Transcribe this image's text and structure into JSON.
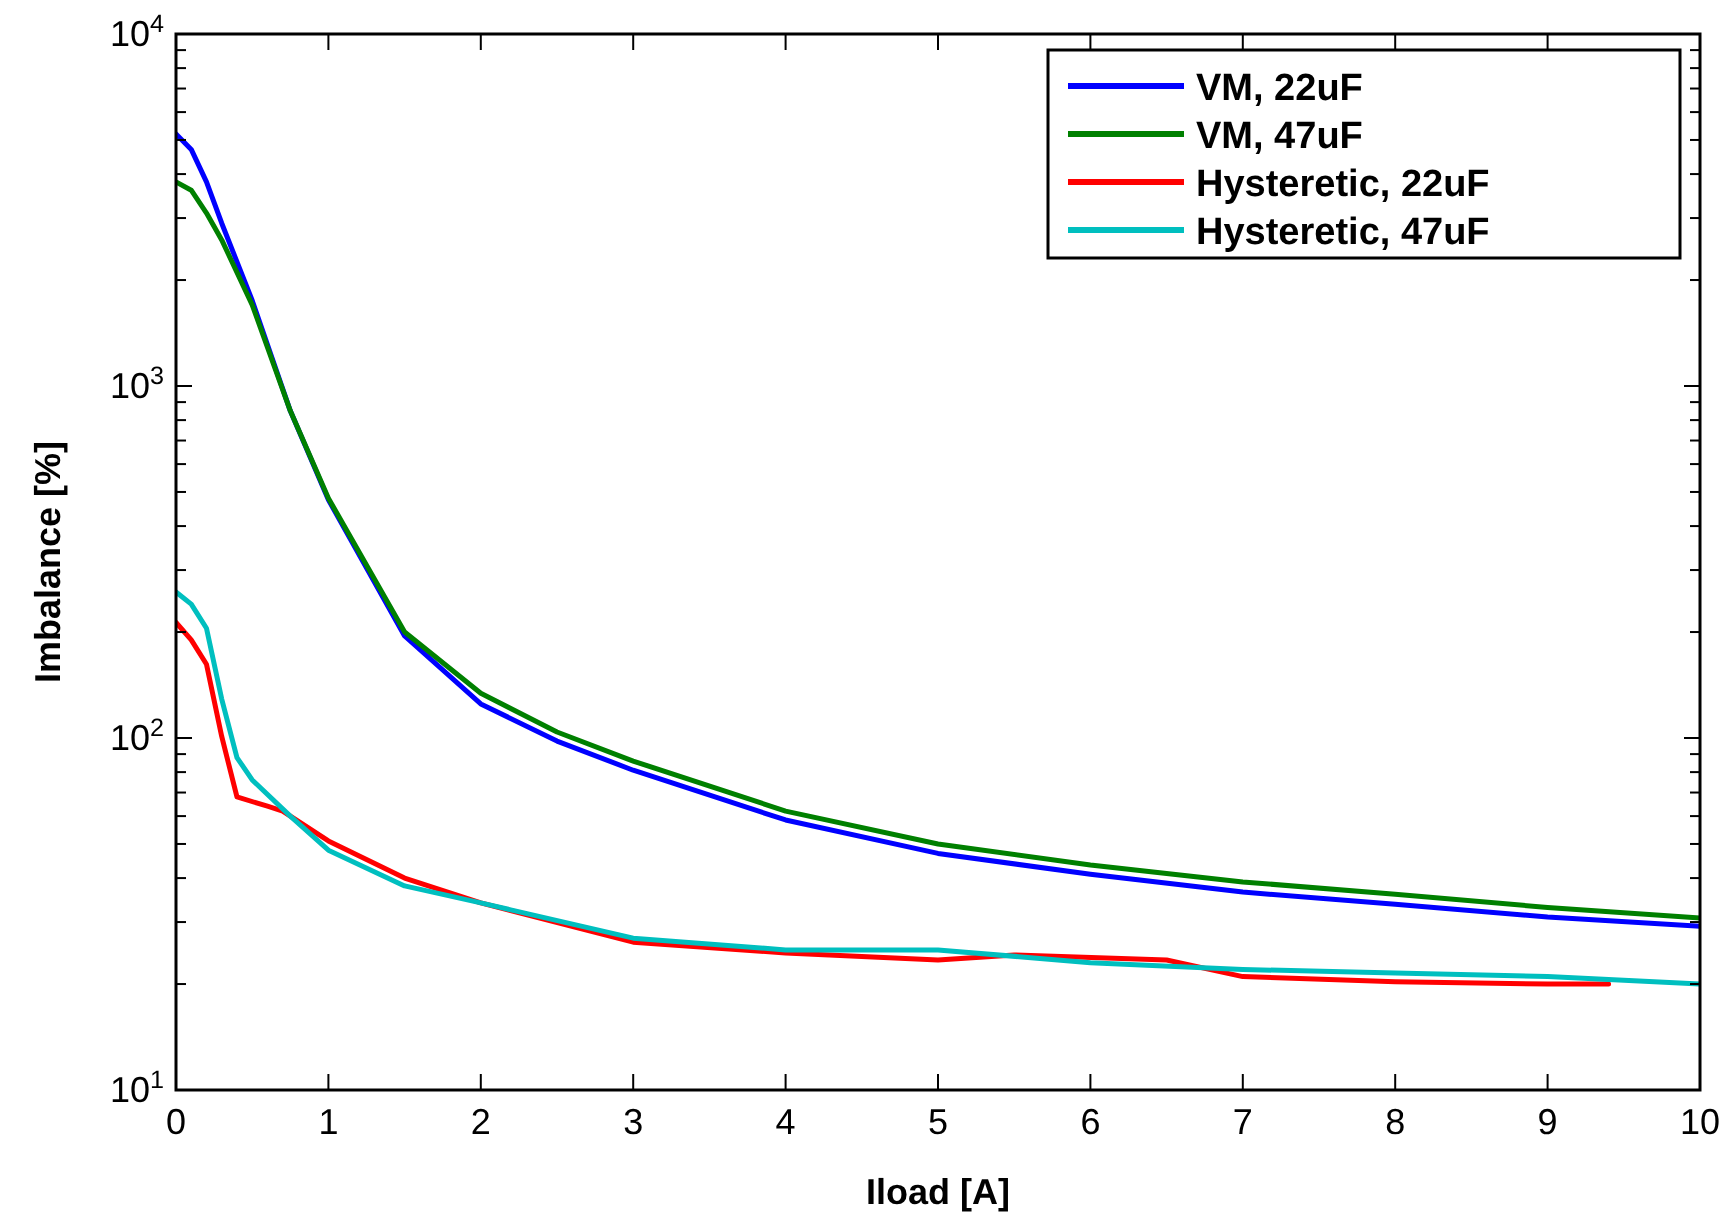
{
  "chart_data": {
    "type": "line",
    "xlabel": "Iload [A]",
    "ylabel": "Imbalance [%]",
    "log": "y",
    "grid": false,
    "legend": "top right",
    "line_style": "solid",
    "marker": "none",
    "xlim": [
      0,
      10
    ],
    "xticks": [
      0,
      1,
      2,
      3,
      4,
      5,
      6,
      7,
      8,
      9,
      10
    ],
    "ylim": [
      10,
      10000
    ],
    "yticks": [
      {
        "value": 10,
        "label": "10$^{1}$"
      },
      {
        "value": 20,
        "label": null
      },
      {
        "value": 30,
        "label": null
      },
      {
        "value": 40,
        "label": null
      },
      {
        "value": 50,
        "label": null
      },
      {
        "value": 60,
        "label": null
      },
      {
        "value": 70,
        "label": null
      },
      {
        "value": 80,
        "label": null
      },
      {
        "value": 90,
        "label": null
      },
      {
        "value": 100,
        "label": "10$^{2}$"
      },
      {
        "value": 200,
        "label": null
      },
      {
        "value": 300,
        "label": null
      },
      {
        "value": 400,
        "label": null
      },
      {
        "value": 500,
        "label": null
      },
      {
        "value": 600,
        "label": null
      },
      {
        "value": 700,
        "label": null
      },
      {
        "value": 800,
        "label": null
      },
      {
        "value": 900,
        "label": null
      },
      {
        "value": 1000,
        "label": "10$^{3}$"
      },
      {
        "value": 2000,
        "label": null
      },
      {
        "value": 3000,
        "label": null
      },
      {
        "value": 4000,
        "label": null
      },
      {
        "value": 5000,
        "label": null
      },
      {
        "value": 6000,
        "label": null
      },
      {
        "value": 7000,
        "label": null
      },
      {
        "value": 8000,
        "label": null
      },
      {
        "value": 9000,
        "label": null
      },
      {
        "value": 10000,
        "label": "10$^{4}$"
      }
    ],
    "series": [
      {
        "name": "VM, 22uF",
        "color": "#0000ff",
        "x": [
          0,
          0.1,
          0.2,
          0.3,
          0.5,
          0.75,
          1,
          1.5,
          2,
          2.5,
          3,
          4,
          5,
          6,
          7,
          8,
          9,
          10
        ],
        "values": [
          5200,
          4700,
          3800,
          2900,
          1750,
          850,
          475,
          195,
          125,
          98,
          81,
          58.5,
          47,
          41,
          36.5,
          33.7,
          31,
          29.2
        ]
      },
      {
        "name": "VM, 47uF",
        "color": "#008000",
        "x": [
          0,
          0.1,
          0.2,
          0.3,
          0.5,
          0.75,
          1,
          1.5,
          2,
          2.5,
          3,
          4,
          5,
          6,
          7,
          8,
          9,
          10
        ],
        "values": [
          3800,
          3600,
          3100,
          2600,
          1700,
          850,
          480,
          200,
          134,
          104,
          86,
          62,
          50,
          43.6,
          39,
          36,
          33,
          30.8
        ]
      },
      {
        "name": "Hysteretic, 22uF",
        "color": "#ff0000",
        "x": [
          0,
          0.1,
          0.2,
          0.3,
          0.4,
          0.6,
          0.7,
          1,
          1.5,
          2,
          3,
          4,
          5,
          5.5,
          6.5,
          7,
          8,
          9,
          9.4
        ],
        "values": [
          213,
          190,
          162,
          101,
          68,
          64,
          62,
          51,
          40,
          34,
          26.3,
          24.5,
          23.4,
          24.2,
          23.4,
          21,
          20.3,
          20,
          20
        ]
      },
      {
        "name": "Hysteretic, 47uF",
        "color": "#00bfbf",
        "x": [
          0,
          0.1,
          0.2,
          0.3,
          0.4,
          0.5,
          0.75,
          1,
          1.5,
          2,
          3,
          4,
          5,
          6,
          7,
          8,
          9,
          10
        ],
        "values": [
          260,
          240,
          205,
          129,
          88,
          76,
          60,
          48,
          38,
          34,
          27,
          25,
          25,
          23,
          22,
          21.5,
          21,
          20
        ]
      }
    ]
  }
}
